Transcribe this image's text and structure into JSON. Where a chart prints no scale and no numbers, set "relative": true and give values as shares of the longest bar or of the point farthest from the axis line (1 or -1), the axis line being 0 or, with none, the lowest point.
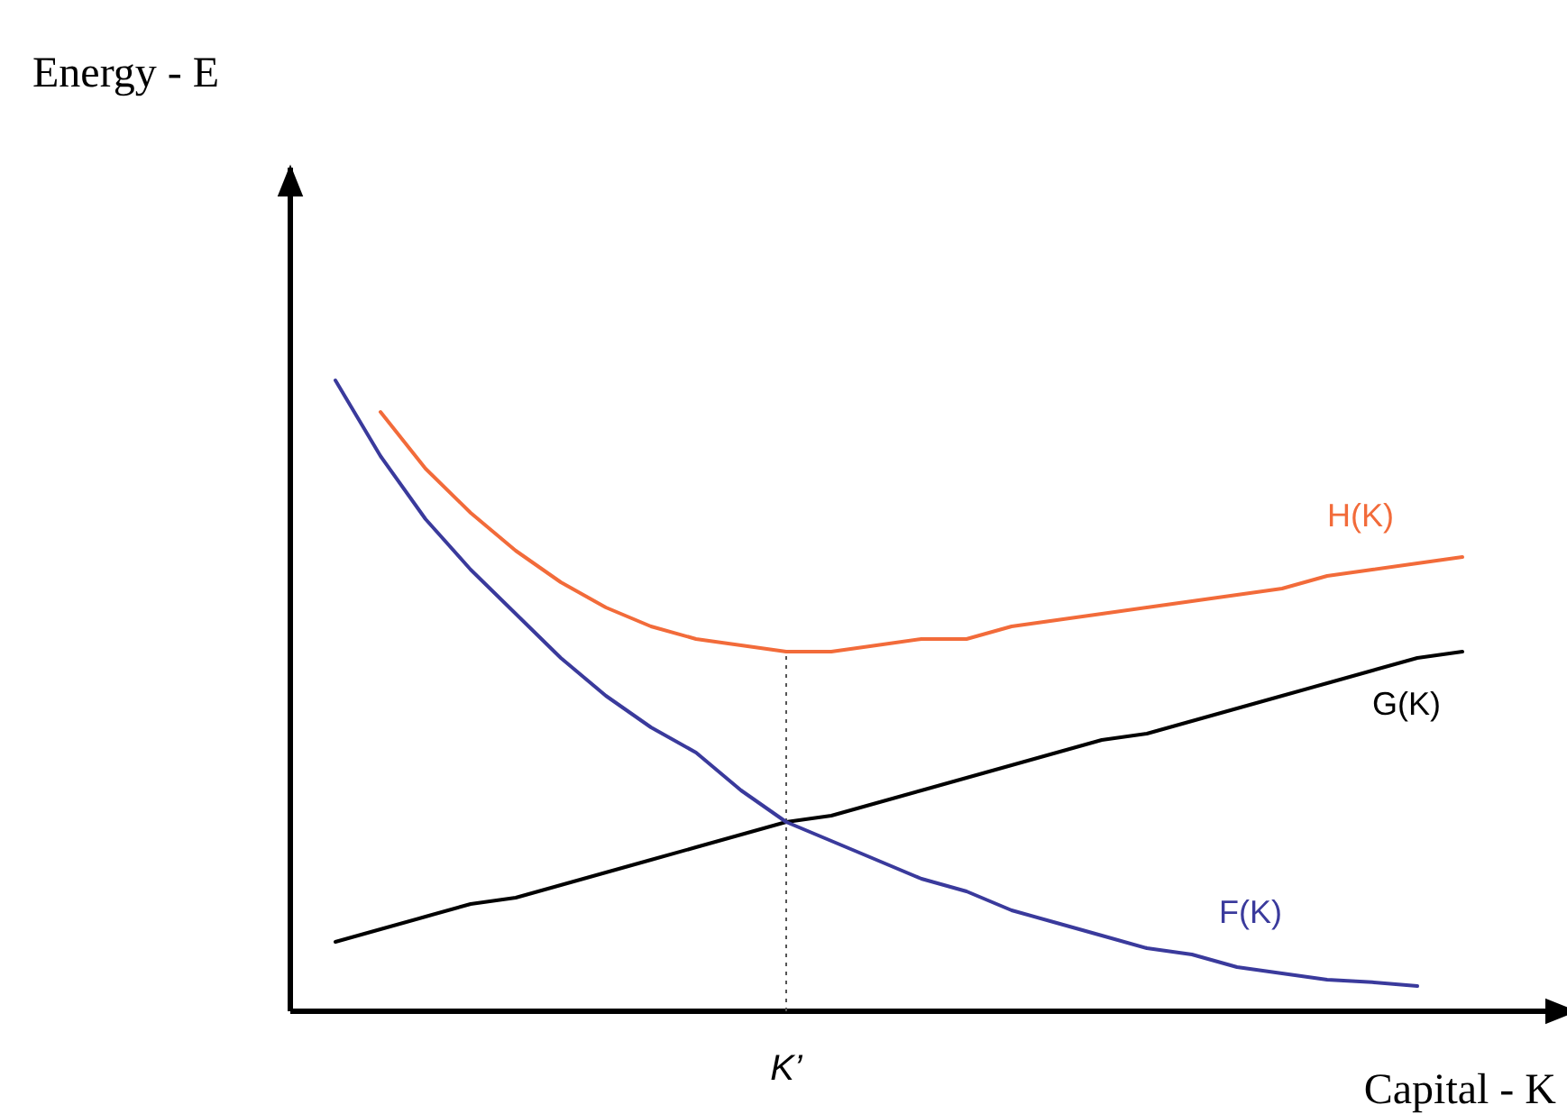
{
  "chart_data": {
    "type": "line",
    "relative": true,
    "xlabel": "Capital - K",
    "annotations": [
      "Energy - E"
    ],
    "line_style": "solid",
    "categories": [
      null,
      null,
      null,
      null,
      null,
      null,
      null,
      null,
      null,
      null,
      null,
      null,
      null,
      null,
      null,
      null,
      null,
      null,
      null,
      null,
      null,
      null,
      null,
      null,
      null,
      null
    ],
    "series": [
      {
        "name": "H(K)",
        "color": "#f26b3a",
        "values": [
          null,
          0.95,
          0.86,
          0.79,
          0.73,
          0.68,
          0.64,
          0.61,
          0.59,
          0.58,
          0.57,
          0.57,
          0.58,
          0.59,
          0.59,
          0.61,
          0.62,
          0.63,
          0.64,
          0.65,
          0.66,
          0.67,
          0.69,
          0.7,
          0.71,
          0.72
        ]
      },
      {
        "name": "G(K)",
        "color": "#000000",
        "values": [
          0.11,
          0.13,
          0.15,
          0.17,
          0.18,
          0.2,
          0.22,
          0.24,
          0.26,
          0.28,
          0.3,
          0.31,
          0.33,
          0.35,
          0.37,
          0.39,
          0.41,
          0.43,
          0.44,
          0.46,
          0.48,
          0.5,
          0.52,
          0.54,
          0.56,
          0.57
        ]
      },
      {
        "name": "F(K)",
        "color": "#3a3a9c",
        "values": [
          1.0,
          0.88,
          0.78,
          0.7,
          0.63,
          0.56,
          0.5,
          0.45,
          0.41,
          0.35,
          0.3,
          0.27,
          0.24,
          0.21,
          0.19,
          0.16,
          0.14,
          0.12,
          0.1,
          0.09,
          0.07,
          0.06,
          0.05,
          0.046,
          0.04,
          null
        ]
      }
    ],
    "ref_lines": [
      {
        "axis": "x",
        "label": "K’",
        "color": "#555555",
        "line_style": "dotted"
      }
    ]
  }
}
